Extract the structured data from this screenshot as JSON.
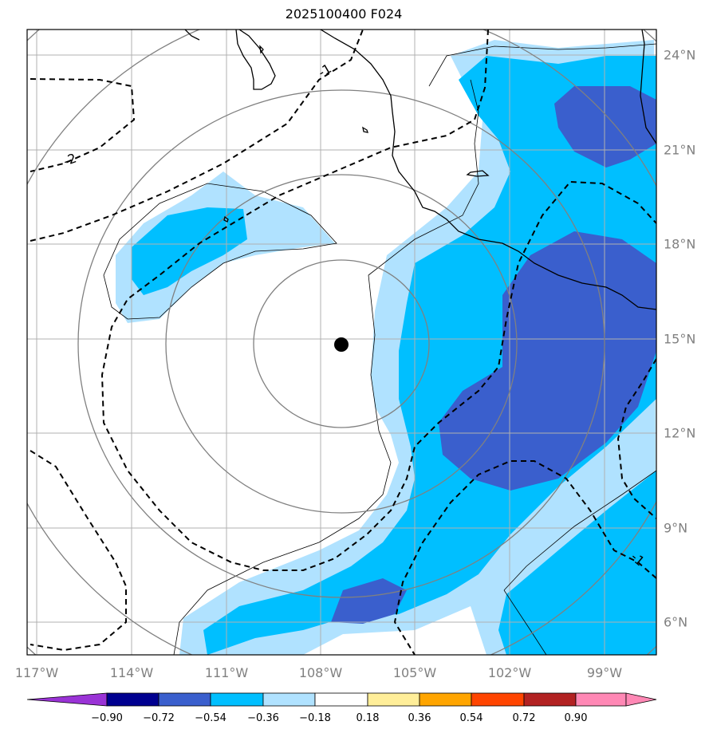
{
  "title": "2025100400 F024",
  "longitude_labels": [
    "117°W",
    "114°W",
    "111°W",
    "108°W",
    "105°W",
    "102°W",
    "99°W"
  ],
  "latitude_labels": [
    "24°N",
    "21°N",
    "18°N",
    "15°N",
    "12°N",
    "9°N",
    "6°N"
  ],
  "contour_labels": [
    "-1",
    "-2",
    "-1"
  ],
  "colorbar": {
    "tick_labels": [
      "−0.90",
      "−0.72",
      "−0.54",
      "−0.36",
      "−0.18",
      "0.18",
      "0.36",
      "0.54",
      "0.72",
      "0.90"
    ],
    "colors": [
      "#9a33d6",
      "#000090",
      "#3a5fcd",
      "#00bfff",
      "#b0e2ff",
      "#ffffff",
      "#ffee99",
      "#ffa500",
      "#ff4500",
      "#b22222",
      "#ff88b5"
    ]
  },
  "storm_center": {
    "lon": -107.4,
    "lat": 14.8
  },
  "map_extent": {
    "lon": [
      -117.0,
      -97.3
    ],
    "lat": [
      4.9,
      24.8
    ]
  }
}
